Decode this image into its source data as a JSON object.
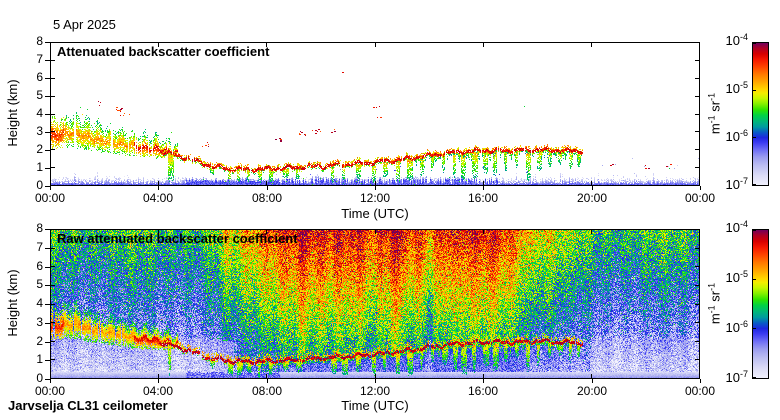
{
  "meta": {
    "date": "5 Apr 2025",
    "footer": "Jarvselja CL31 ceilometer"
  },
  "axes": {
    "x_label": "Time (UTC)",
    "y_label": "Height (km)",
    "x_ticks": [
      "00:00",
      "04:00",
      "08:00",
      "12:00",
      "16:00",
      "20:00",
      "00:00"
    ],
    "x_tick_hours": [
      0,
      4,
      8,
      12,
      16,
      20,
      24
    ],
    "y_ticks": [
      "0",
      "1",
      "2",
      "3",
      "4",
      "5",
      "6",
      "7",
      "8"
    ],
    "y_tick_km": [
      0,
      1,
      2,
      3,
      4,
      5,
      6,
      7,
      8
    ],
    "x_range_hours": [
      0,
      24
    ],
    "y_range_km": [
      0,
      8
    ]
  },
  "colorbar": {
    "tick_base": "10",
    "tick_exponents": [
      "-4",
      "-5",
      "-6",
      "-7"
    ],
    "unit_parts": [
      {
        "base": "m",
        "exp": "-1"
      },
      {
        "base": "sr",
        "exp": "-1"
      }
    ]
  },
  "colors": {
    "background": "#ffffff",
    "axis": "#000000",
    "text": "#000000",
    "colormap_stops": [
      [
        0.0,
        "#f2f2fd"
      ],
      [
        0.07,
        "#dcdcf7"
      ],
      [
        0.14,
        "#bcbef2"
      ],
      [
        0.2,
        "#9a9cf0"
      ],
      [
        0.25,
        "#6e6ef6"
      ],
      [
        0.3,
        "#3c3cf2"
      ],
      [
        0.335,
        "#1e28e0"
      ],
      [
        0.37,
        "#0a58c8"
      ],
      [
        0.41,
        "#009ca0"
      ],
      [
        0.45,
        "#00b878"
      ],
      [
        0.49,
        "#00d246"
      ],
      [
        0.53,
        "#30e400"
      ],
      [
        0.57,
        "#84f000"
      ],
      [
        0.61,
        "#c8f800"
      ],
      [
        0.645,
        "#f4ee00"
      ],
      [
        0.67,
        "#ffd800"
      ],
      [
        0.72,
        "#ffaa00"
      ],
      [
        0.78,
        "#ff7700"
      ],
      [
        0.83,
        "#ff4400"
      ],
      [
        0.88,
        "#f51800"
      ],
      [
        0.92,
        "#d80000"
      ],
      [
        0.96,
        "#ae0026"
      ],
      [
        1.0,
        "#6c0062"
      ]
    ]
  },
  "chart_data": [
    {
      "type": "heatmap",
      "id": "processed",
      "title": "Attenuated backscatter coefficient",
      "x_range_hours": [
        0,
        24
      ],
      "y_range_km": [
        0,
        8
      ],
      "value_log10_range": [
        -7,
        -4
      ],
      "features": {
        "surface_layer_segments": [
          {
            "t0": 0.0,
            "t1": 5.0,
            "style": "lavender",
            "top_km": 0.45
          },
          {
            "t0": 5.0,
            "t1": 8.5,
            "style": "deep_blue",
            "top_km": 0.35
          },
          {
            "t0": 8.5,
            "t1": 16.6,
            "style": "blue_lavender_mix",
            "top_km": 0.4
          },
          {
            "t0": 16.6,
            "t1": 24.0,
            "style": "lavender",
            "top_km": 0.4
          }
        ],
        "aerosol_plume": {
          "t0": 0.0,
          "t1": 4.7,
          "core_after_t": 3.1,
          "top_km": [
            [
              0,
              3.6
            ],
            [
              0.8,
              4.0
            ],
            [
              1.6,
              3.5
            ],
            [
              2.4,
              3.2
            ],
            [
              3.2,
              2.9
            ],
            [
              4.0,
              2.7
            ],
            [
              4.7,
              2.3
            ]
          ],
          "bottom_km": [
            [
              0,
              2.1
            ],
            [
              0.8,
              2.2
            ],
            [
              1.6,
              1.95
            ],
            [
              2.4,
              1.8
            ],
            [
              3.2,
              1.65
            ],
            [
              4.0,
              1.55
            ],
            [
              4.7,
              1.6
            ]
          ]
        },
        "cloud_base_line": {
          "t0": 4.0,
          "t1": 19.7,
          "height_km": [
            [
              4.0,
              1.95
            ],
            [
              4.5,
              1.75
            ],
            [
              5.0,
              1.55
            ],
            [
              5.5,
              1.3
            ],
            [
              6.0,
              1.05
            ],
            [
              6.5,
              0.95
            ],
            [
              7.0,
              0.9
            ],
            [
              7.5,
              0.9
            ],
            [
              8.0,
              0.92
            ],
            [
              9.0,
              1.0
            ],
            [
              10.0,
              1.08
            ],
            [
              11.0,
              1.18
            ],
            [
              12.0,
              1.3
            ],
            [
              13.0,
              1.45
            ],
            [
              14.0,
              1.68
            ],
            [
              15.0,
              1.85
            ],
            [
              16.0,
              1.95
            ],
            [
              17.0,
              1.95
            ],
            [
              18.0,
              2.0
            ],
            [
              19.0,
              1.95
            ],
            [
              19.7,
              1.9
            ]
          ]
        },
        "virga_events": [
          [
            4.35,
            1.0
          ],
          [
            5.9,
            0.5
          ],
          [
            6.6,
            1.0
          ],
          [
            6.9,
            1.0
          ],
          [
            7.3,
            0.8
          ],
          [
            7.7,
            1.0
          ],
          [
            8.1,
            0.9
          ],
          [
            8.6,
            0.6
          ],
          [
            9.1,
            0.7
          ],
          [
            10.4,
            0.9
          ],
          [
            10.8,
            1.0
          ],
          [
            11.3,
            0.8
          ],
          [
            11.9,
            1.0
          ],
          [
            12.3,
            0.7
          ],
          [
            12.8,
            1.0
          ],
          [
            13.2,
            0.9
          ],
          [
            13.7,
            0.7
          ],
          [
            14.1,
            0.5
          ],
          [
            14.5,
            0.6
          ],
          [
            14.9,
            0.8
          ],
          [
            15.2,
            1.0
          ],
          [
            15.6,
            0.9
          ],
          [
            16.0,
            0.7
          ],
          [
            16.4,
            0.8
          ],
          [
            16.8,
            0.6
          ],
          [
            17.2,
            0.5
          ],
          [
            17.6,
            0.9
          ],
          [
            18.0,
            0.7
          ],
          [
            18.4,
            0.5
          ],
          [
            18.8,
            0.4
          ],
          [
            19.2,
            0.6
          ],
          [
            19.5,
            0.5
          ]
        ],
        "cloud_dots": [
          [
            1.8,
            4.6,
            3
          ],
          [
            2.5,
            4.25,
            7
          ],
          [
            2.7,
            4.0,
            4
          ],
          [
            5.8,
            2.3,
            5
          ],
          [
            8.4,
            2.6,
            6
          ],
          [
            9.3,
            2.9,
            9
          ],
          [
            9.9,
            3.0,
            7
          ],
          [
            10.5,
            3.0,
            4
          ],
          [
            12.1,
            4.4,
            3
          ],
          [
            12.15,
            3.8,
            2
          ],
          [
            10.9,
            6.3,
            1
          ],
          [
            20.8,
            1.2,
            2
          ],
          [
            22.0,
            1.0,
            3
          ],
          [
            23.0,
            1.05,
            2
          ]
        ],
        "green_dots": [
          [
            17.5,
            4.5,
            1
          ],
          [
            22.9,
            1.0,
            1
          ]
        ]
      }
    },
    {
      "type": "heatmap",
      "id": "raw",
      "title": "Raw attenuated backscatter coefficient",
      "x_range_hours": [
        0,
        24
      ],
      "y_range_km": [
        0,
        8
      ],
      "value_log10_range": [
        -7,
        -4
      ],
      "noise": {
        "day_ramp_hours": [
          5.5,
          8.5,
          16.0,
          20.5
        ],
        "night_profile": {
          "v_surface": 0.1,
          "v_top": 0.5
        },
        "day_profile": {
          "v_surface": 0.3,
          "v_top": 0.88
        },
        "jitter": 0.3,
        "early_clean_region": {
          "t1": 6.8,
          "top_km": 2.8
        },
        "evening_clean_region": {
          "t0": 20.0,
          "top_km": 2.2
        },
        "surface_gradient_top_km": 0.35,
        "streaks": [
          [
            6.5,
            0.06
          ],
          [
            9.3,
            0.05
          ],
          [
            10.6,
            0.08
          ],
          [
            11.1,
            0.1
          ],
          [
            11.45,
            0.07
          ],
          [
            12.0,
            -0.06
          ],
          [
            12.7,
            0.08
          ],
          [
            13.4,
            -0.07
          ],
          [
            14.05,
            -0.12
          ],
          [
            14.6,
            0.06
          ],
          [
            15.3,
            0.05
          ],
          [
            17.8,
            -0.06
          ],
          [
            19.2,
            -0.05
          ]
        ]
      }
    }
  ]
}
